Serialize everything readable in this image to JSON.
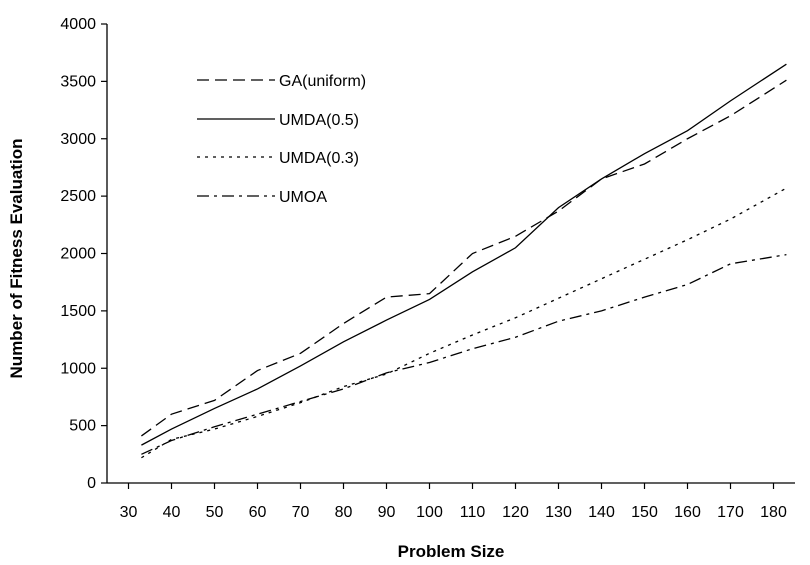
{
  "chart_data": {
    "type": "line",
    "xlabel": "Problem Size",
    "ylabel": "Number of Fitness Evaluation",
    "x": [
      33,
      40,
      50,
      60,
      70,
      80,
      90,
      100,
      110,
      120,
      130,
      140,
      150,
      160,
      170,
      183
    ],
    "xticks": [
      30,
      40,
      50,
      60,
      70,
      80,
      90,
      100,
      110,
      120,
      130,
      140,
      150,
      160,
      170,
      180
    ],
    "xlim": [
      25,
      185
    ],
    "ylim": [
      0,
      4000
    ],
    "yticks": [
      0,
      500,
      1000,
      1500,
      2000,
      2500,
      3000,
      3500,
      4000
    ],
    "grid": false,
    "legend_position": "top-left",
    "series": [
      {
        "name": "GA(uniform)",
        "dash": "dash",
        "values": [
          410,
          600,
          720,
          980,
          1130,
          1390,
          1620,
          1650,
          2000,
          2150,
          2370,
          2650,
          2780,
          3000,
          3200,
          3510
        ]
      },
      {
        "name": "UMDA(0.5)",
        "dash": "solid",
        "values": [
          330,
          470,
          650,
          820,
          1020,
          1230,
          1420,
          1600,
          1840,
          2050,
          2400,
          2650,
          2870,
          3070,
          3330,
          3650
        ]
      },
      {
        "name": "UMDA(0.3)",
        "dash": "dot",
        "values": [
          220,
          380,
          470,
          580,
          700,
          840,
          950,
          1130,
          1290,
          1440,
          1610,
          1780,
          1950,
          2120,
          2300,
          2570
        ]
      },
      {
        "name": "UMOA",
        "dash": "dashdot",
        "values": [
          250,
          370,
          490,
          600,
          710,
          820,
          960,
          1050,
          1170,
          1270,
          1410,
          1500,
          1620,
          1730,
          1910,
          1990
        ]
      }
    ]
  }
}
